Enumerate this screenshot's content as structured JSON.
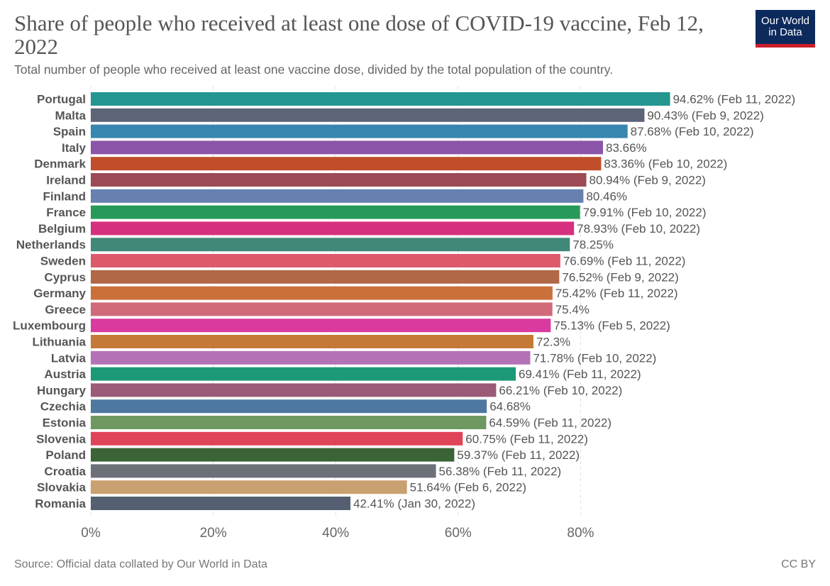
{
  "header": {
    "title": "Share of people who received at least one dose of COVID-19 vaccine, Feb 12, 2022",
    "subtitle": "Total number of people who received at least one vaccine dose, divided by the total population of the country.",
    "logo_line1": "Our World",
    "logo_line2": "in Data"
  },
  "footer": {
    "source": "Source: Official data collated by Our World in Data",
    "license": "CC BY"
  },
  "chart_data": {
    "type": "bar",
    "orientation": "horizontal",
    "title": "Share of people who received at least one dose of COVID-19 vaccine, Feb 12, 2022",
    "xlabel": "",
    "ylabel": "",
    "xlim": [
      0,
      100
    ],
    "x_ticks": [
      0,
      20,
      40,
      60,
      80
    ],
    "x_tick_labels": [
      "0%",
      "20%",
      "40%",
      "60%",
      "80%"
    ],
    "grid": true,
    "categories": [
      "Portugal",
      "Malta",
      "Spain",
      "Italy",
      "Denmark",
      "Ireland",
      "Finland",
      "France",
      "Belgium",
      "Netherlands",
      "Sweden",
      "Cyprus",
      "Germany",
      "Greece",
      "Luxembourg",
      "Lithuania",
      "Latvia",
      "Austria",
      "Hungary",
      "Czechia",
      "Estonia",
      "Slovenia",
      "Poland",
      "Croatia",
      "Slovakia",
      "Romania"
    ],
    "values": [
      94.62,
      90.43,
      87.68,
      83.66,
      83.36,
      80.94,
      80.46,
      79.91,
      78.93,
      78.25,
      76.69,
      76.52,
      75.42,
      75.4,
      75.13,
      72.3,
      71.78,
      69.41,
      66.21,
      64.68,
      64.59,
      60.75,
      59.37,
      56.38,
      51.64,
      42.41
    ],
    "value_labels": [
      "94.62% (Feb 11, 2022)",
      "90.43% (Feb 9, 2022)",
      "87.68% (Feb 10, 2022)",
      "83.66%",
      "83.36% (Feb 10, 2022)",
      "80.94% (Feb 9, 2022)",
      "80.46%",
      "79.91% (Feb 10, 2022)",
      "78.93% (Feb 10, 2022)",
      "78.25%",
      "76.69% (Feb 11, 2022)",
      "76.52% (Feb 9, 2022)",
      "75.42% (Feb 11, 2022)",
      "75.4%",
      "75.13% (Feb 5, 2022)",
      "72.3%",
      "71.78% (Feb 10, 2022)",
      "69.41% (Feb 11, 2022)",
      "66.21% (Feb 10, 2022)",
      "64.68%",
      "64.59% (Feb 11, 2022)",
      "60.75% (Feb 11, 2022)",
      "59.37% (Feb 11, 2022)",
      "56.38% (Feb 11, 2022)",
      "51.64% (Feb 6, 2022)",
      "42.41% (Jan 30, 2022)"
    ],
    "colors": [
      "#23968f",
      "#5c6478",
      "#3686b0",
      "#8a55a8",
      "#c04e2b",
      "#9c4a55",
      "#6680b0",
      "#279a5a",
      "#d72f80",
      "#408878",
      "#dc5a6a",
      "#b06846",
      "#ca703a",
      "#d16a7a",
      "#d93aa0",
      "#c47a36",
      "#b571b5",
      "#1c9976",
      "#9a5a78",
      "#4e78a0",
      "#6e9860",
      "#e04458",
      "#3a6436",
      "#6c7078",
      "#c9a070",
      "#545f72"
    ]
  }
}
